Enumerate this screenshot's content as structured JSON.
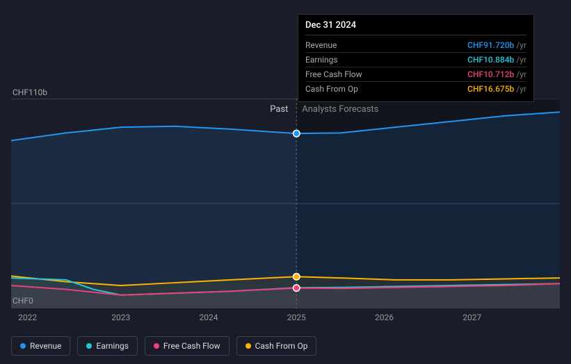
{
  "chart": {
    "type": "area-line",
    "background_color": "#1a1d29",
    "grid_color": "#3a3f52",
    "ylim": [
      0,
      110
    ],
    "y_labels": {
      "top": "CHF110b",
      "bottom": "CHF0"
    },
    "x_ticks": [
      {
        "label": "2022",
        "pct": 3
      },
      {
        "label": "2023",
        "pct": 20
      },
      {
        "label": "2024",
        "pct": 36
      },
      {
        "label": "2025",
        "pct": 52
      },
      {
        "label": "2026",
        "pct": 68
      },
      {
        "label": "2027",
        "pct": 84
      }
    ],
    "divider_pct": 52,
    "past_label": "Past",
    "forecast_label": "Analysts Forecasts",
    "series": [
      {
        "name": "Revenue",
        "color": "#2196f3",
        "fill": "rgba(33,150,243,0.12)",
        "stroke_width": 2,
        "points": [
          {
            "x": 0,
            "y": 88
          },
          {
            "x": 10,
            "y": 92
          },
          {
            "x": 20,
            "y": 95
          },
          {
            "x": 30,
            "y": 95.5
          },
          {
            "x": 40,
            "y": 94
          },
          {
            "x": 52,
            "y": 91.72
          },
          {
            "x": 60,
            "y": 92
          },
          {
            "x": 70,
            "y": 95
          },
          {
            "x": 80,
            "y": 98
          },
          {
            "x": 90,
            "y": 101
          },
          {
            "x": 100,
            "y": 103
          }
        ]
      },
      {
        "name": "Cash From Op",
        "color": "#ffb300",
        "fill": "rgba(255,179,0,0.08)",
        "stroke_width": 2,
        "points": [
          {
            "x": 0,
            "y": 17
          },
          {
            "x": 10,
            "y": 14
          },
          {
            "x": 20,
            "y": 12
          },
          {
            "x": 30,
            "y": 13.5
          },
          {
            "x": 40,
            "y": 15
          },
          {
            "x": 52,
            "y": 16.675
          },
          {
            "x": 60,
            "y": 16
          },
          {
            "x": 70,
            "y": 15
          },
          {
            "x": 80,
            "y": 15
          },
          {
            "x": 90,
            "y": 15.5
          },
          {
            "x": 100,
            "y": 16
          }
        ]
      },
      {
        "name": "Earnings",
        "color": "#26c6da",
        "fill": "rgba(38,198,218,0.08)",
        "stroke_width": 2,
        "points": [
          {
            "x": 0,
            "y": 16
          },
          {
            "x": 10,
            "y": 15
          },
          {
            "x": 15,
            "y": 10
          },
          {
            "x": 20,
            "y": 7
          },
          {
            "x": 30,
            "y": 8
          },
          {
            "x": 40,
            "y": 9
          },
          {
            "x": 52,
            "y": 10.884
          },
          {
            "x": 60,
            "y": 11
          },
          {
            "x": 70,
            "y": 11.5
          },
          {
            "x": 80,
            "y": 12
          },
          {
            "x": 90,
            "y": 12.5
          },
          {
            "x": 100,
            "y": 13
          }
        ]
      },
      {
        "name": "Free Cash Flow",
        "color": "#ec407a",
        "fill": "rgba(236,64,122,0.08)",
        "stroke_width": 2,
        "points": [
          {
            "x": 0,
            "y": 12
          },
          {
            "x": 10,
            "y": 10
          },
          {
            "x": 20,
            "y": 7
          },
          {
            "x": 30,
            "y": 8
          },
          {
            "x": 40,
            "y": 9
          },
          {
            "x": 52,
            "y": 10.712
          },
          {
            "x": 60,
            "y": 10.5
          },
          {
            "x": 70,
            "y": 11
          },
          {
            "x": 80,
            "y": 11.5
          },
          {
            "x": 90,
            "y": 12
          },
          {
            "x": 100,
            "y": 13
          }
        ]
      }
    ],
    "highlight_markers": [
      {
        "series": "Revenue",
        "x": 52,
        "y": 91.72
      },
      {
        "series": "Cash From Op",
        "x": 52,
        "y": 16.675
      },
      {
        "series": "Free Cash Flow",
        "x": 52,
        "y": 10.712
      }
    ]
  },
  "tooltip": {
    "date": "Dec 31 2024",
    "unit": "/yr",
    "rows": [
      {
        "label": "Revenue",
        "value": "CHF91.720b",
        "color": "#2196f3"
      },
      {
        "label": "Earnings",
        "value": "CHF10.884b",
        "color": "#26c6da"
      },
      {
        "label": "Free Cash Flow",
        "value": "CHF10.712b",
        "color": "#ec407a"
      },
      {
        "label": "Cash From Op",
        "value": "CHF16.675b",
        "color": "#ffb300"
      }
    ]
  },
  "legend": [
    {
      "label": "Revenue",
      "color": "#2196f3"
    },
    {
      "label": "Earnings",
      "color": "#26c6da"
    },
    {
      "label": "Free Cash Flow",
      "color": "#ec407a"
    },
    {
      "label": "Cash From Op",
      "color": "#ffb300"
    }
  ]
}
